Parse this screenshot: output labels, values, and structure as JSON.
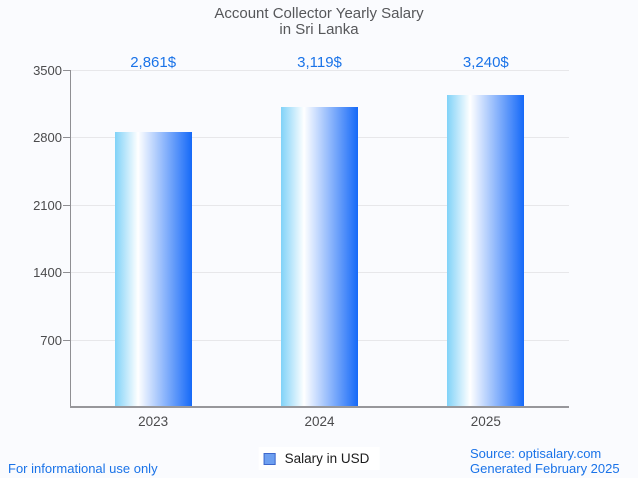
{
  "chart_data": {
    "type": "bar",
    "title_line1": "Account Collector Yearly Salary",
    "title_line2": "in Sri Lanka",
    "categories": [
      "2023",
      "2024",
      "2025"
    ],
    "values": [
      2861,
      3119,
      3240
    ],
    "value_labels": [
      "2,861$",
      "3,119$",
      "3,240$"
    ],
    "y_ticks": [
      3500,
      2800,
      2100,
      1400,
      700
    ],
    "ylim": [
      0,
      3500
    ],
    "xlabel": "",
    "ylabel": "",
    "grid": true,
    "legend_position": "bottom",
    "legend": [
      "Salary in USD"
    ]
  },
  "footer": {
    "left": "For informational use only",
    "source": "Source: optisalary.com",
    "generated": "Generated February 2025"
  },
  "colors": {
    "background": "#fafbfe",
    "title_text": "#56575a",
    "axis_text": "#4b4b4d",
    "axis_line": "#97979b",
    "gridline": "#e7e7ea",
    "value_label_text": "#1a73e8",
    "footer_text": "#1a73e8",
    "bar_gradient_left": "#80d2f8",
    "bar_gradient_mid": "#ffffff",
    "bar_gradient_right": "#1569f8",
    "legend_swatch_fill": "#6d9ff0",
    "legend_swatch_border": "#3e68cc"
  }
}
